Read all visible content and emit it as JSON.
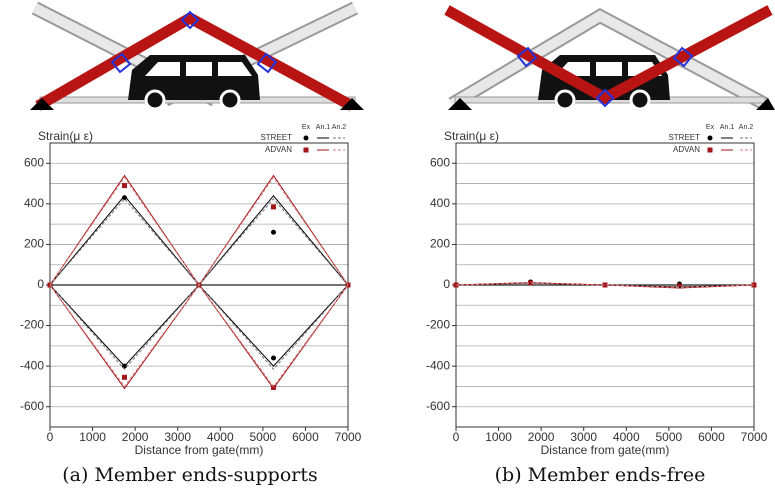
{
  "chart_data": [
    {
      "type": "line",
      "title": "Strain(μ ε)",
      "xlabel": "Distance from gate(mm)",
      "caption": "(a) Member ends-supports",
      "xlim": [
        0,
        7000
      ],
      "xticks": [
        0,
        1000,
        2000,
        3000,
        4000,
        5000,
        6000,
        7000
      ],
      "ylim": [
        -700,
        700
      ],
      "yticks": [
        -600,
        -400,
        -200,
        0,
        200,
        400,
        600
      ],
      "y_grid": [
        -700,
        -600,
        -500,
        -400,
        -300,
        -200,
        -100,
        0,
        100,
        200,
        300,
        400,
        500,
        600,
        700
      ],
      "legend": {
        "columns": [
          "Ex",
          "An.1",
          "An.2"
        ],
        "rows": [
          "STREET",
          "ADVAN"
        ]
      },
      "series": [
        {
          "row": 0,
          "col": 0,
          "color": "#000000",
          "x": [
            0,
            1750,
            1750,
            3500,
            5250,
            5250,
            7000
          ],
          "values": [
            0,
            430,
            -400,
            0,
            260,
            -360,
            0
          ]
        },
        {
          "row": 1,
          "col": 0,
          "color": "#a3161a",
          "x": [
            0,
            1750,
            1750,
            3500,
            5250,
            5250,
            7000
          ],
          "values": [
            0,
            490,
            -455,
            0,
            385,
            -505,
            0
          ]
        },
        {
          "row": 0,
          "col": 1,
          "color": "#000000",
          "x": [
            0,
            1750,
            3500,
            5250,
            7000
          ],
          "values": [
            0,
            440,
            0,
            440,
            0
          ]
        },
        {
          "row": 0,
          "col": 1,
          "color": "#000000",
          "x": [
            0,
            1750,
            3500,
            5250,
            7000
          ],
          "values": [
            0,
            -400,
            0,
            -400,
            0
          ]
        },
        {
          "row": 0,
          "col": 2,
          "color": "#777777",
          "x": [
            0,
            1750,
            3500,
            5250,
            7000
          ],
          "values": [
            0,
            425,
            0,
            425,
            0
          ]
        },
        {
          "row": 0,
          "col": 2,
          "color": "#777777",
          "x": [
            0,
            1750,
            3500,
            5250,
            7000
          ],
          "values": [
            0,
            -415,
            0,
            -415,
            0
          ]
        },
        {
          "row": 1,
          "col": 1,
          "color": "#a3161a",
          "x": [
            0,
            1750,
            3500,
            5250,
            7000
          ],
          "values": [
            0,
            540,
            0,
            540,
            0
          ]
        },
        {
          "row": 1,
          "col": 1,
          "color": "#a3161a",
          "x": [
            0,
            1750,
            3500,
            5250,
            7000
          ],
          "values": [
            0,
            -510,
            0,
            -510,
            0
          ]
        },
        {
          "row": 1,
          "col": 2,
          "color": "#d98080",
          "x": [
            0,
            1750,
            3500,
            5250,
            7000
          ],
          "values": [
            0,
            530,
            0,
            530,
            0
          ]
        },
        {
          "row": 1,
          "col": 2,
          "color": "#d98080",
          "x": [
            0,
            1750,
            3500,
            5250,
            7000
          ],
          "values": [
            0,
            -500,
            0,
            -500,
            0
          ]
        }
      ]
    },
    {
      "type": "line",
      "title": "Strain(μ ε)",
      "xlabel": "Distance from gate(mm)",
      "caption": "(b) Member ends-free",
      "xlim": [
        0,
        7000
      ],
      "xticks": [
        0,
        1000,
        2000,
        3000,
        4000,
        5000,
        6000,
        7000
      ],
      "ylim": [
        -700,
        700
      ],
      "yticks": [
        -600,
        -400,
        -200,
        0,
        200,
        400,
        600
      ],
      "y_grid": [
        -700,
        -600,
        -500,
        -400,
        -300,
        -200,
        -100,
        0,
        100,
        200,
        300,
        400,
        500,
        600,
        700
      ],
      "legend": {
        "columns": [
          "Ex",
          "An.1",
          "An.2"
        ],
        "rows": [
          "STREET",
          "ADVAN"
        ]
      },
      "series": [
        {
          "row": 0,
          "col": 0,
          "color": "#000000",
          "x": [
            0,
            1750,
            3500,
            5250,
            7000
          ],
          "values": [
            0,
            15,
            0,
            5,
            0
          ]
        },
        {
          "row": 1,
          "col": 0,
          "color": "#a3161a",
          "x": [
            0,
            1750,
            3500,
            5250,
            7000
          ],
          "values": [
            0,
            10,
            0,
            -5,
            0
          ]
        },
        {
          "row": 0,
          "col": 1,
          "color": "#000000",
          "x": [
            0,
            1750,
            3500,
            5250,
            7000
          ],
          "values": [
            0,
            10,
            0,
            -10,
            0
          ]
        },
        {
          "row": 0,
          "col": 2,
          "color": "#777777",
          "x": [
            0,
            1750,
            3500,
            5250,
            7000
          ],
          "values": [
            0,
            8,
            0,
            -8,
            0
          ]
        },
        {
          "row": 1,
          "col": 1,
          "color": "#a3161a",
          "x": [
            0,
            1750,
            3500,
            5250,
            7000
          ],
          "values": [
            0,
            12,
            0,
            -15,
            0
          ]
        },
        {
          "row": 1,
          "col": 2,
          "color": "#d98080",
          "x": [
            0,
            1750,
            3500,
            5250,
            7000
          ],
          "values": [
            0,
            10,
            0,
            -12,
            0
          ]
        }
      ]
    }
  ]
}
